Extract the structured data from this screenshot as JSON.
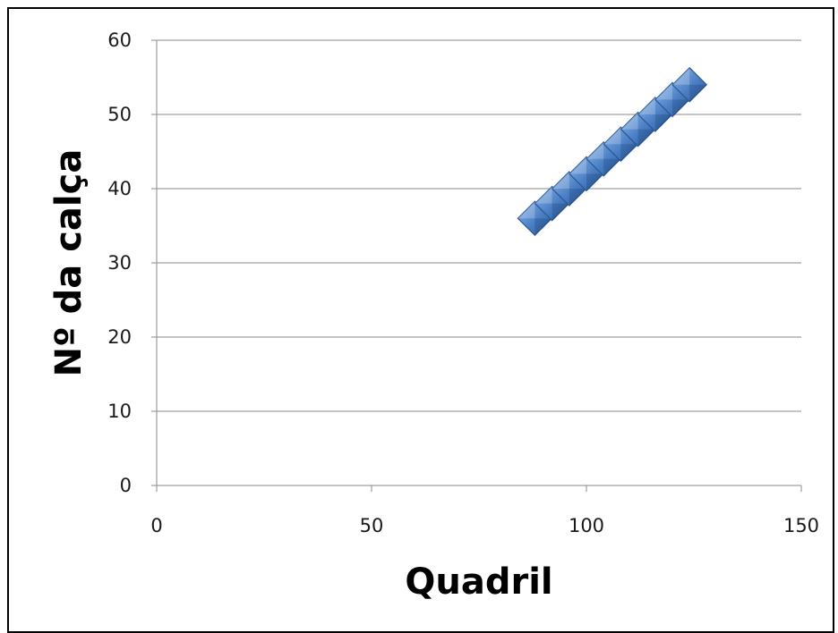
{
  "chart_data": {
    "type": "scatter",
    "title": "",
    "xlabel": "Quadril",
    "ylabel": "Nº da calça",
    "xlim": [
      0,
      150
    ],
    "ylim": [
      0,
      60
    ],
    "xticks": [
      0,
      50,
      100,
      150
    ],
    "yticks": [
      0,
      10,
      20,
      30,
      40,
      50,
      60
    ],
    "xtick_labels": [
      "0",
      "50",
      "100",
      "150"
    ],
    "ytick_labels": [
      "0",
      "10",
      "20",
      "30",
      "40",
      "50",
      "60"
    ],
    "grid": {
      "horizontal": true,
      "vertical": false
    },
    "legend": "none",
    "marker": "diamond",
    "marker_color": "#4a7fc4",
    "series": [
      {
        "x": [
          88,
          92,
          96,
          100,
          104,
          108,
          112,
          116,
          120,
          124
        ],
        "y": [
          36,
          38,
          40,
          42,
          44,
          46,
          48,
          50,
          52,
          54
        ]
      }
    ]
  }
}
